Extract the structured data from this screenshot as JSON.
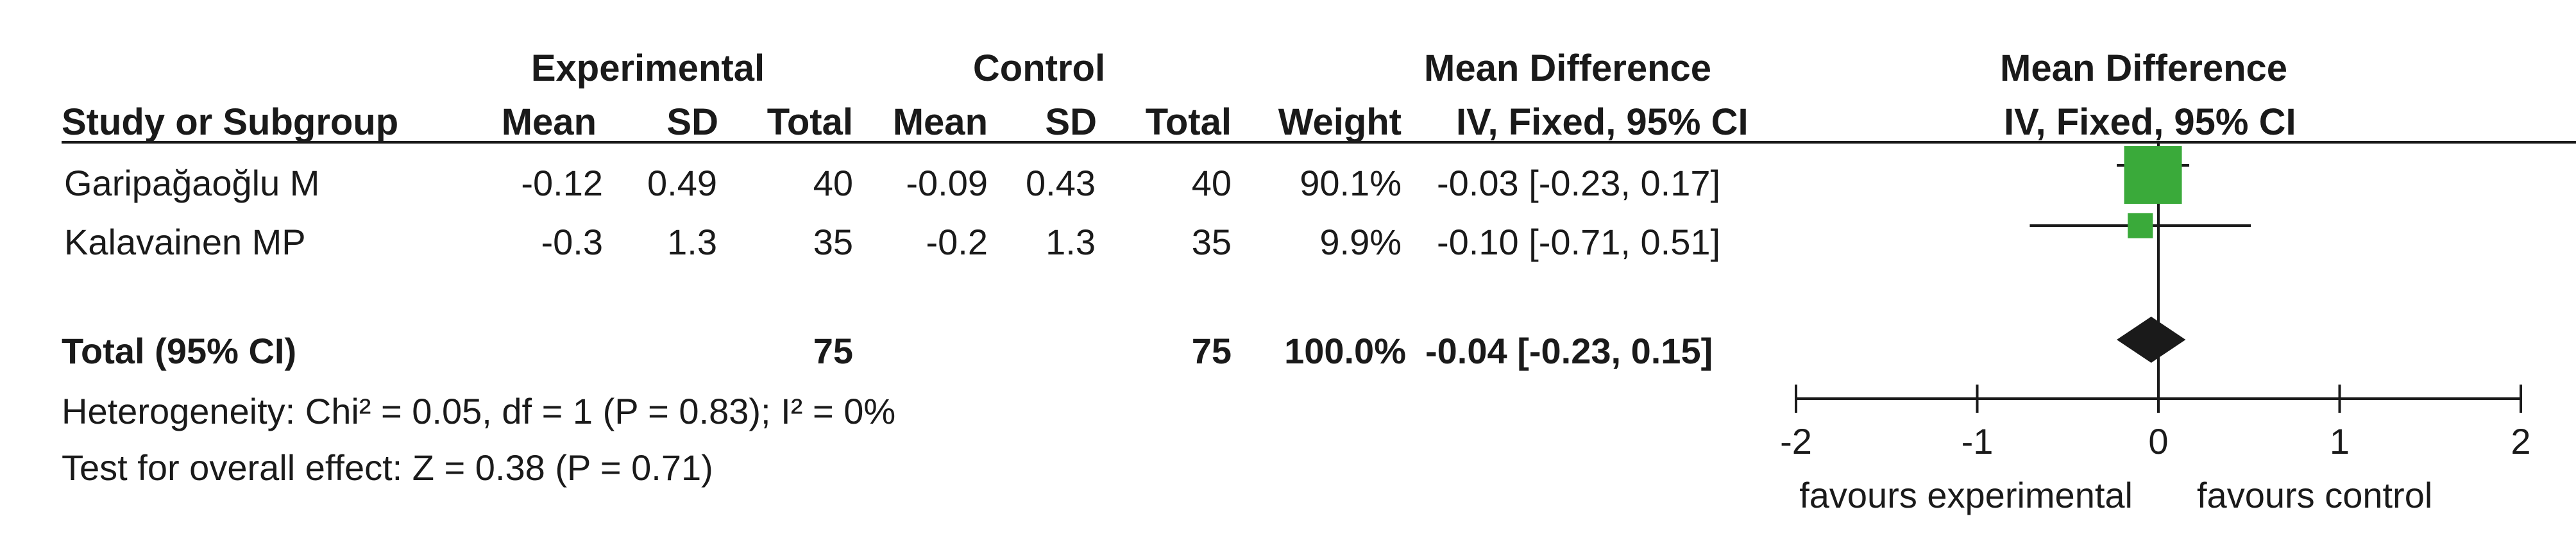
{
  "chart_data": {
    "type": "forest",
    "column_headers": {
      "group_experimental": "Experimental",
      "group_control": "Control",
      "group_md": "Mean Difference",
      "plot_header": "Mean Difference",
      "plot_subheader": "IV, Fixed, 95% CI",
      "study": "Study or Subgroup",
      "mean_e": "Mean",
      "sd_e": "SD",
      "total_e": "Total",
      "mean_c": "Mean",
      "sd_c": "SD",
      "total_c": "Total",
      "weight": "Weight",
      "md_ci": "IV, Fixed, 95% CI"
    },
    "studies": [
      {
        "name": "Garipağaoğlu M",
        "mean_e": "-0.12",
        "sd_e": "0.49",
        "total_e": "40",
        "mean_c": "-0.09",
        "sd_c": "0.43",
        "total_c": "40",
        "weight": "90.1%",
        "md_ci": "-0.03 [-0.23, 0.17]",
        "md": -0.03,
        "lower": -0.23,
        "upper": 0.17,
        "weight_value": 90.1
      },
      {
        "name": "Kalavainen MP",
        "mean_e": "-0.3",
        "sd_e": "1.3",
        "total_e": "35",
        "mean_c": "-0.2",
        "sd_c": "1.3",
        "total_c": "35",
        "weight": "9.9%",
        "md_ci": "-0.10 [-0.71, 0.51]",
        "md": -0.1,
        "lower": -0.71,
        "upper": 0.51,
        "weight_value": 9.9
      }
    ],
    "total": {
      "label": "Total (95% CI)",
      "total_e": "75",
      "total_c": "75",
      "weight": "100.0%",
      "md_ci": "-0.04 [-0.23, 0.15]",
      "md": -0.04,
      "lower": -0.23,
      "upper": 0.15
    },
    "heterogeneity": "Heterogeneity: Chi² = 0.05, df = 1 (P = 0.83); I² = 0%",
    "overall_effect": "Test for overall effect: Z = 0.38 (P = 0.71)",
    "axis": {
      "xlim": [
        -2,
        2
      ],
      "ticks": [
        "-2",
        "-1",
        "0",
        "1",
        "2"
      ],
      "tick_values": [
        -2,
        -1,
        0,
        1,
        2
      ],
      "null_value": 0
    },
    "favours_left": "favours experimental",
    "favours_right": "favours control",
    "colors": {
      "study_marker": "#3aaa3a",
      "total_marker": "#1a1a1a",
      "lines": "#1a1a1a"
    }
  }
}
